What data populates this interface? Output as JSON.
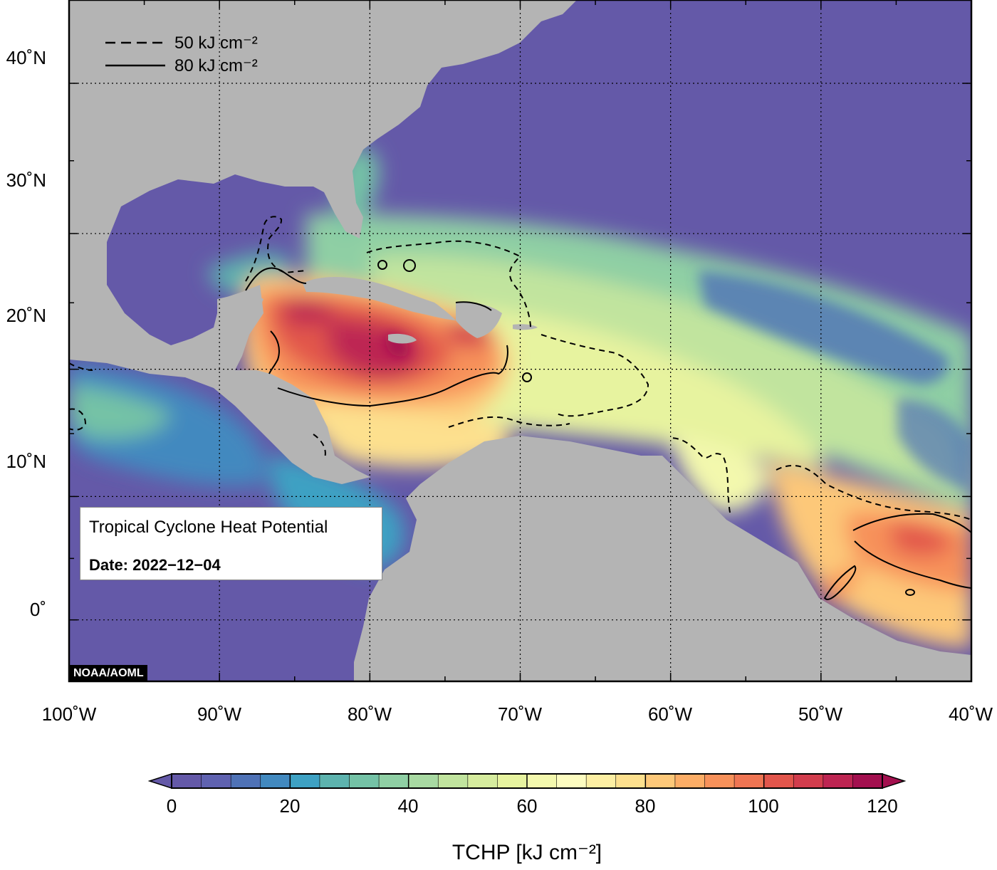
{
  "map": {
    "region_bounds": {
      "lon": [
        -100,
        -40
      ],
      "lat": [
        -5,
        45
      ]
    },
    "ocean_base_color": "#6459a8",
    "land_color": "#b4b4b4",
    "lat_labels": [
      "40˚N",
      "30˚N",
      "20˚N",
      "10˚N",
      "0˚"
    ],
    "lon_labels": [
      "100˚W",
      "90˚W",
      "80˚W",
      "70˚W",
      "60˚W",
      "50˚W",
      "40˚W"
    ],
    "gridlines": "dotted",
    "legend": [
      {
        "style": "dashed",
        "value": "50",
        "unit": "kJ cm⁻²"
      },
      {
        "style": "solid",
        "value": "80",
        "unit": "kJ cm⁻²"
      }
    ],
    "info_box": {
      "title": "Tropical Cyclone Heat Potential",
      "date": "Date: 2022−12−04"
    },
    "credit": "NOAA/AOML"
  },
  "colorbar": {
    "ticks": [
      "0",
      "20",
      "40",
      "60",
      "80",
      "100",
      "120"
    ],
    "label": "TCHP [kJ cm⁻²]",
    "range": [
      0,
      120
    ],
    "colors": [
      "#6459a8",
      "#5f62b0",
      "#4f72b6",
      "#4289bf",
      "#3ea1c3",
      "#5db3ae",
      "#74c2a6",
      "#8fcfa4",
      "#a8d9a2",
      "#c1e49e",
      "#d6ec9e",
      "#e7f39f",
      "#f3f8ad",
      "#fdfcc0",
      "#fdefa3",
      "#fde08e",
      "#fdc879",
      "#fcad66",
      "#f7915a",
      "#ef7553",
      "#e2564c",
      "#d23d4d",
      "#bd2552",
      "#a3104f"
    ],
    "extend": "both"
  }
}
